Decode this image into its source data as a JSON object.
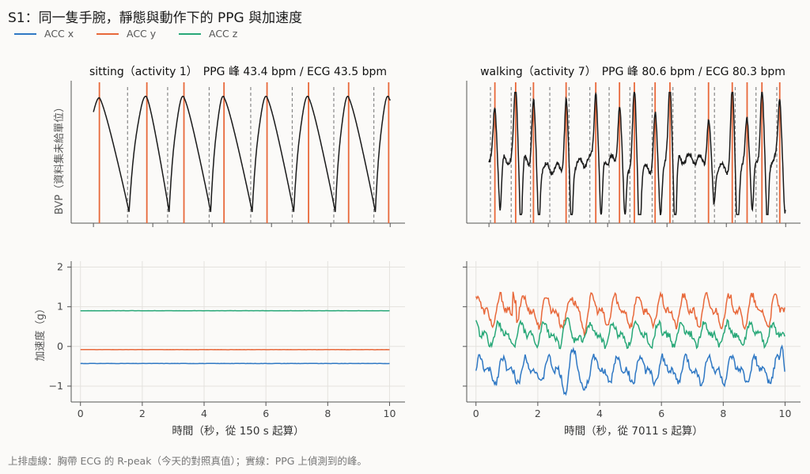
{
  "figure": {
    "title": "S1：同一隻手腕，靜態與動作下的 PPG 與加速度",
    "footnote": "上排虛線：胸帶 ECG 的 R-peak（今天的對照真值）；實線：PPG 上偵測到的峰。",
    "bvp_ylabel": "BVP（資料集未給單位）",
    "acc_ylabel": "加速度（g）",
    "colors": {
      "acc_x": "#2f78c4",
      "acc_y": "#e8683a",
      "acc_z": "#28a878",
      "bvp": "#1a1a1a",
      "ppg_peak": "#e8683a",
      "ecg_peak": "#888888"
    }
  },
  "legend": [
    {
      "label": "ACC x",
      "color": "#2f78c4"
    },
    {
      "label": "ACC y",
      "color": "#e8683a"
    },
    {
      "label": "ACC z",
      "color": "#28a878"
    }
  ],
  "chart_data": [
    {
      "type": "line",
      "panel": "sitting-bvp",
      "title": "sitting（activity 1）　PPG 峰 43.4 bpm / ECG 43.5 bpm",
      "xlim": [
        0,
        10
      ],
      "ylim": [
        0,
        1
      ],
      "ppg_peaks": [
        0.2,
        1.8,
        3.05,
        4.4,
        5.85,
        7.25,
        8.6,
        9.95
      ],
      "ecg_peaks": [
        1.15,
        2.5,
        3.9,
        5.3,
        6.7,
        8.1,
        9.45
      ],
      "troughs": [
        1.2,
        2.55,
        3.95,
        5.35,
        6.75,
        8.15,
        9.5
      ],
      "series": [
        {
          "name": "BVP",
          "peak_value": 0.9,
          "trough_value": 0.05
        }
      ]
    },
    {
      "type": "line",
      "panel": "walking-bvp",
      "title": "walking（activity 7）　PPG 峰 80.6 bpm / ECG 80.3 bpm",
      "xlim": [
        0,
        10
      ],
      "ylim": [
        0,
        1
      ],
      "ppg_peaks": [
        0.2,
        0.9,
        1.5,
        2.6,
        3.6,
        4.4,
        4.9,
        5.6,
        6.1,
        7.4,
        8.2,
        8.7,
        9.2,
        9.8
      ],
      "ecg_peaks": [
        0.05,
        0.75,
        1.4,
        2.05,
        2.7,
        3.4,
        4.05,
        4.75,
        5.5,
        6.2,
        6.95,
        7.6,
        8.3,
        9.0,
        9.7
      ],
      "series": [
        {
          "name": "BVP"
        }
      ]
    },
    {
      "type": "line",
      "panel": "sitting-acc",
      "xlabel": "時間（秒，從 150 s 起算）",
      "ylabel": "加速度（g）",
      "xlim": [
        -0.3,
        10.5
      ],
      "ylim": [
        -1.4,
        2.15
      ],
      "xticks": [
        0,
        2,
        4,
        6,
        8,
        10
      ],
      "yticks": [
        -1,
        0,
        1,
        2
      ],
      "series": [
        {
          "name": "ACC x",
          "level": -0.43
        },
        {
          "name": "ACC y",
          "level": -0.08
        },
        {
          "name": "ACC z",
          "level": 0.9
        }
      ]
    },
    {
      "type": "line",
      "panel": "walking-acc",
      "xlabel": "時間（秒，從 7011 s 起算）",
      "xlim": [
        -0.3,
        10.5
      ],
      "ylim": [
        -1.4,
        2.15
      ],
      "xticks": [
        0,
        2,
        4,
        6,
        8,
        10
      ],
      "yticks": [
        -1,
        0,
        1,
        2
      ],
      "series": [
        {
          "name": "ACC x",
          "mean": -0.6,
          "amp": 0.3
        },
        {
          "name": "ACC y",
          "mean": 0.9,
          "amp": 0.35
        },
        {
          "name": "ACC z",
          "mean": 0.3,
          "amp": 0.25
        }
      ]
    }
  ]
}
